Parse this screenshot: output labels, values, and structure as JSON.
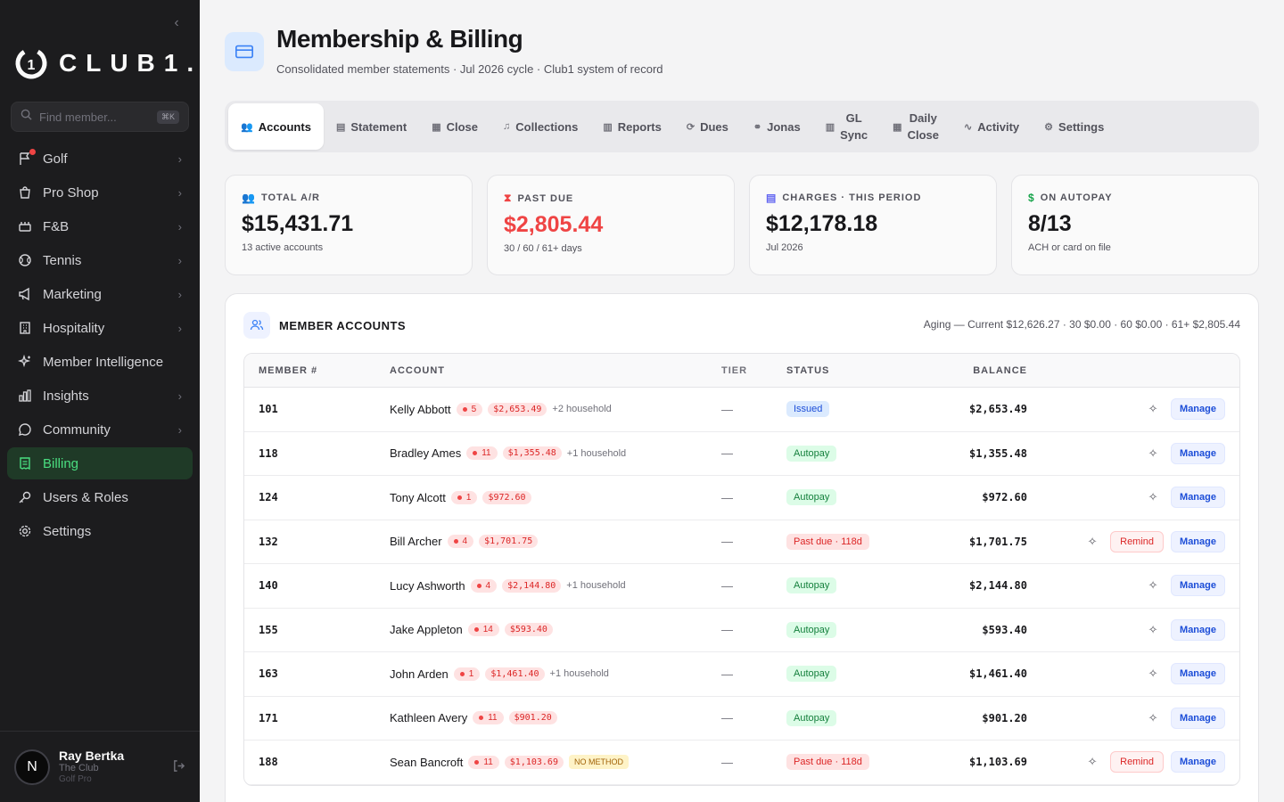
{
  "sidebar": {
    "logo_text": "CLUB1.",
    "search_placeholder": "Find member...",
    "search_shortcut": "⌘K",
    "items": [
      {
        "label": "Golf",
        "icon": "flag-icon",
        "chevron": true,
        "notification": true
      },
      {
        "label": "Pro Shop",
        "icon": "bag-icon",
        "chevron": true
      },
      {
        "label": "F&B",
        "icon": "food-icon",
        "chevron": true
      },
      {
        "label": "Tennis",
        "icon": "tennis-ball-icon",
        "chevron": true
      },
      {
        "label": "Marketing",
        "icon": "megaphone-icon",
        "chevron": true
      },
      {
        "label": "Hospitality",
        "icon": "building-icon",
        "chevron": true
      },
      {
        "label": "Member Intelligence",
        "icon": "sparkle-icon",
        "chevron": false
      },
      {
        "label": "Insights",
        "icon": "bar-chart-icon",
        "chevron": true
      },
      {
        "label": "Community",
        "icon": "chat-icon",
        "chevron": true
      },
      {
        "label": "Billing",
        "icon": "receipt-icon",
        "chevron": false,
        "active": true
      },
      {
        "label": "Users & Roles",
        "icon": "key-icon",
        "chevron": false
      },
      {
        "label": "Settings",
        "icon": "gear-icon",
        "chevron": false
      }
    ],
    "user": {
      "initial": "N",
      "name": "Ray Bertka",
      "club": "The Club",
      "role": "Golf Pro"
    }
  },
  "header": {
    "title": "Membership & Billing",
    "subtitle": "Consolidated member statements · Jul 2026 cycle · Club1 system of record"
  },
  "tabs": [
    {
      "label": "Accounts",
      "icon": "users-icon",
      "active": true
    },
    {
      "label": "Statement",
      "icon": "document-icon"
    },
    {
      "label": "Close",
      "icon": "calendar-icon"
    },
    {
      "label": "Collections",
      "icon": "bell-icon"
    },
    {
      "label": "Reports",
      "icon": "bar-chart-icon"
    },
    {
      "label": "Dues",
      "icon": "refresh-icon"
    },
    {
      "label": "Jonas",
      "icon": "link-icon"
    },
    {
      "label": "GL",
      "label2": "Sync",
      "icon": "bar-chart-icon"
    },
    {
      "label": "Daily",
      "label2": "Close",
      "icon": "calendar-icon"
    },
    {
      "label": "Activity",
      "icon": "activity-icon"
    },
    {
      "label": "Settings",
      "icon": "gear-icon"
    }
  ],
  "stats": [
    {
      "label": "TOTAL A/R",
      "value": "$15,431.71",
      "sub": "13 active accounts",
      "icon": "users-icon",
      "color": "#3b82f6"
    },
    {
      "label": "PAST DUE",
      "value": "$2,805.44",
      "sub": "30 / 60 / 61+ days",
      "icon": "hourglass-icon",
      "color": "#ef4444"
    },
    {
      "label": "CHARGES · THIS PERIOD",
      "value": "$12,178.18",
      "sub": "Jul 2026",
      "icon": "document-icon",
      "color": "#6366f1"
    },
    {
      "label": "ON AUTOPAY",
      "value": "8/13",
      "sub": "ACH or card on file",
      "icon": "dollar-icon",
      "color": "#16a34a"
    }
  ],
  "accounts_card": {
    "title": "MEMBER ACCOUNTS",
    "aging": "Aging — Current $12,626.27 · 30 $0.00 · 60 $0.00 · 61+ $2,805.44",
    "columns": [
      "MEMBER #",
      "ACCOUNT",
      "TIER",
      "STATUS",
      "BALANCE"
    ],
    "rows": [
      {
        "num": "101",
        "name": "Kelly Abbott",
        "count": "5",
        "amount": "$2,653.49",
        "extra": "+2 household",
        "tier": "—",
        "status": "Issued",
        "status_type": "issued",
        "balance": "$2,653.49",
        "remind": false
      },
      {
        "num": "118",
        "name": "Bradley Ames",
        "count": "11",
        "amount": "$1,355.48",
        "extra": "+1 household",
        "tier": "—",
        "status": "Autopay",
        "status_type": "autopay",
        "balance": "$1,355.48",
        "remind": false
      },
      {
        "num": "124",
        "name": "Tony Alcott",
        "count": "1",
        "amount": "$972.60",
        "extra": "",
        "tier": "—",
        "status": "Autopay",
        "status_type": "autopay",
        "balance": "$972.60",
        "remind": false
      },
      {
        "num": "132",
        "name": "Bill Archer",
        "count": "4",
        "amount": "$1,701.75",
        "extra": "",
        "tier": "—",
        "status": "Past due · 118d",
        "status_type": "pastdue",
        "balance": "$1,701.75",
        "remind": true
      },
      {
        "num": "140",
        "name": "Lucy Ashworth",
        "count": "4",
        "amount": "$2,144.80",
        "extra": "+1 household",
        "tier": "—",
        "status": "Autopay",
        "status_type": "autopay",
        "balance": "$2,144.80",
        "remind": false
      },
      {
        "num": "155",
        "name": "Jake Appleton",
        "count": "14",
        "amount": "$593.40",
        "extra": "",
        "tier": "—",
        "status": "Autopay",
        "status_type": "autopay",
        "balance": "$593.40",
        "remind": false
      },
      {
        "num": "163",
        "name": "John Arden",
        "count": "1",
        "amount": "$1,461.40",
        "extra": "+1 household",
        "tier": "—",
        "status": "Autopay",
        "status_type": "autopay",
        "balance": "$1,461.40",
        "remind": false
      },
      {
        "num": "171",
        "name": "Kathleen Avery",
        "count": "11",
        "amount": "$901.20",
        "extra": "",
        "tier": "—",
        "status": "Autopay",
        "status_type": "autopay",
        "balance": "$901.20",
        "remind": false
      },
      {
        "num": "188",
        "name": "Sean Bancroft",
        "count": "11",
        "amount": "$1,103.69",
        "extra": "",
        "nomethod": "NO METHOD",
        "tier": "—",
        "status": "Past due · 118d",
        "status_type": "pastdue",
        "balance": "$1,103.69",
        "remind": true
      }
    ],
    "remind_label": "Remind",
    "manage_label": "Manage"
  }
}
